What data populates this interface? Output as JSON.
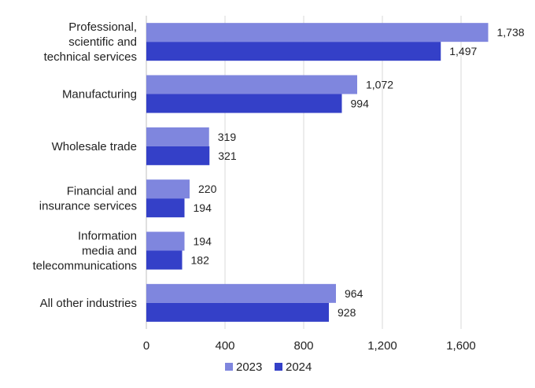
{
  "chart_data": {
    "type": "bar",
    "orientation": "horizontal",
    "categories": [
      [
        "Professional,",
        "scientific and",
        "technical services"
      ],
      [
        "Manufacturing"
      ],
      [
        "Wholesale trade"
      ],
      [
        "Financial and",
        "insurance services"
      ],
      [
        "Information",
        "media and",
        "telecommunications"
      ],
      [
        "All other industries"
      ]
    ],
    "series": [
      {
        "name": "2023",
        "color": "#7f86de",
        "values": [
          1738,
          1072,
          319,
          220,
          194,
          964
        ],
        "labels": [
          "1,738",
          "1,072",
          "319",
          "220",
          "194",
          "964"
        ]
      },
      {
        "name": "2024",
        "color": "#3440c8",
        "values": [
          1497,
          994,
          321,
          194,
          182,
          928
        ],
        "labels": [
          "1,497",
          "994",
          "321",
          "194",
          "182",
          "928"
        ]
      }
    ],
    "xlim": [
      0,
      1800
    ],
    "xticks": [
      0,
      400,
      800,
      1200,
      1600
    ],
    "xtick_labels": [
      "0",
      "400",
      "800",
      "1,200",
      "1,600"
    ],
    "grid": "vertical",
    "legend_position": "bottom"
  }
}
